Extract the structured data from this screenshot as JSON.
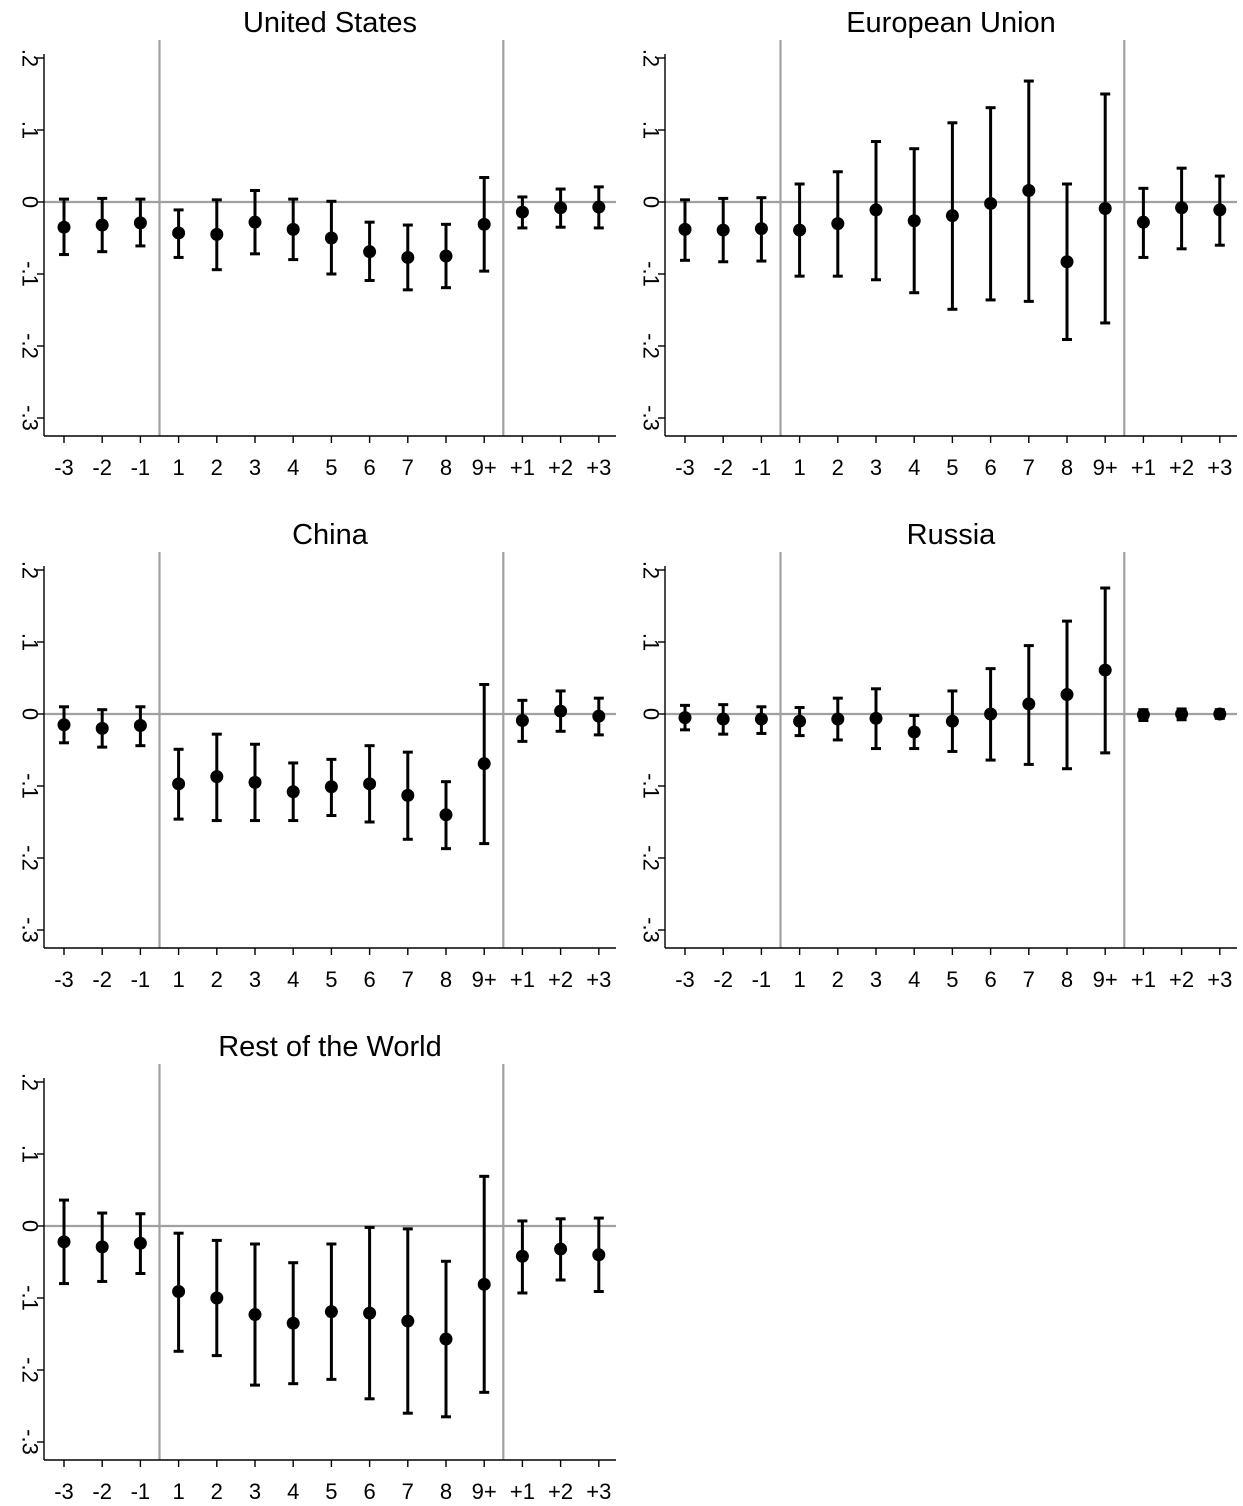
{
  "chart_data": [
    {
      "type": "scatter",
      "title": "United States",
      "categories": [
        "-3",
        "-2",
        "-1",
        "1",
        "2",
        "3",
        "4",
        "5",
        "6",
        "7",
        "8",
        "9+",
        "+1",
        "+2",
        "+3"
      ],
      "yticks": [
        0.2,
        0.1,
        0,
        -0.1,
        -0.2,
        -0.3
      ],
      "ytick_labels": [
        ".2",
        ".1",
        "0",
        "-.1",
        "-.2",
        "-.3"
      ],
      "ylim": [
        -0.325,
        0.225
      ],
      "separators_after": [
        "-1",
        "9+"
      ],
      "zero_line": true,
      "points": [
        {
          "x": "-3",
          "y": -0.035,
          "lo": -0.073,
          "hi": 0.004
        },
        {
          "x": "-2",
          "y": -0.032,
          "lo": -0.069,
          "hi": 0.005
        },
        {
          "x": "-1",
          "y": -0.029,
          "lo": -0.061,
          "hi": 0.004
        },
        {
          "x": "1",
          "y": -0.043,
          "lo": -0.077,
          "hi": -0.011
        },
        {
          "x": "2",
          "y": -0.045,
          "lo": -0.094,
          "hi": 0.003
        },
        {
          "x": "3",
          "y": -0.028,
          "lo": -0.072,
          "hi": 0.016
        },
        {
          "x": "4",
          "y": -0.038,
          "lo": -0.08,
          "hi": 0.004
        },
        {
          "x": "5",
          "y": -0.05,
          "lo": -0.1,
          "hi": 0.001
        },
        {
          "x": "6",
          "y": -0.069,
          "lo": -0.109,
          "hi": -0.028
        },
        {
          "x": "7",
          "y": -0.077,
          "lo": -0.122,
          "hi": -0.032
        },
        {
          "x": "8",
          "y": -0.075,
          "lo": -0.119,
          "hi": -0.031
        },
        {
          "x": "9+",
          "y": -0.031,
          "lo": -0.096,
          "hi": 0.034
        },
        {
          "x": "+1",
          "y": -0.014,
          "lo": -0.036,
          "hi": 0.007
        },
        {
          "x": "+2",
          "y": -0.008,
          "lo": -0.035,
          "hi": 0.018
        },
        {
          "x": "+3",
          "y": -0.007,
          "lo": -0.036,
          "hi": 0.021
        }
      ]
    },
    {
      "type": "scatter",
      "title": "European Union",
      "categories": [
        "-3",
        "-2",
        "-1",
        "1",
        "2",
        "3",
        "4",
        "5",
        "6",
        "7",
        "8",
        "9+",
        "+1",
        "+2",
        "+3"
      ],
      "yticks": [
        0.2,
        0.1,
        0,
        -0.1,
        -0.2,
        -0.3
      ],
      "ytick_labels": [
        ".2",
        ".1",
        "0",
        "-.1",
        "-.2",
        "-.3"
      ],
      "ylim": [
        -0.325,
        0.225
      ],
      "separators_after": [
        "-1",
        "9+"
      ],
      "zero_line": true,
      "points": [
        {
          "x": "-3",
          "y": -0.038,
          "lo": -0.081,
          "hi": 0.003
        },
        {
          "x": "-2",
          "y": -0.039,
          "lo": -0.083,
          "hi": 0.005
        },
        {
          "x": "-1",
          "y": -0.037,
          "lo": -0.082,
          "hi": 0.006
        },
        {
          "x": "1",
          "y": -0.039,
          "lo": -0.103,
          "hi": 0.025
        },
        {
          "x": "2",
          "y": -0.03,
          "lo": -0.103,
          "hi": 0.042
        },
        {
          "x": "3",
          "y": -0.011,
          "lo": -0.108,
          "hi": 0.084
        },
        {
          "x": "4",
          "y": -0.026,
          "lo": -0.126,
          "hi": 0.074
        },
        {
          "x": "5",
          "y": -0.019,
          "lo": -0.149,
          "hi": 0.11
        },
        {
          "x": "6",
          "y": -0.002,
          "lo": -0.136,
          "hi": 0.131
        },
        {
          "x": "7",
          "y": 0.016,
          "lo": -0.138,
          "hi": 0.168
        },
        {
          "x": "8",
          "y": -0.083,
          "lo": -0.191,
          "hi": 0.025
        },
        {
          "x": "9+",
          "y": -0.009,
          "lo": -0.168,
          "hi": 0.15
        },
        {
          "x": "+1",
          "y": -0.028,
          "lo": -0.077,
          "hi": 0.019
        },
        {
          "x": "+2",
          "y": -0.008,
          "lo": -0.065,
          "hi": 0.047
        },
        {
          "x": "+3",
          "y": -0.011,
          "lo": -0.06,
          "hi": 0.036
        }
      ]
    },
    {
      "type": "scatter",
      "title": "China",
      "categories": [
        "-3",
        "-2",
        "-1",
        "1",
        "2",
        "3",
        "4",
        "5",
        "6",
        "7",
        "8",
        "9+",
        "+1",
        "+2",
        "+3"
      ],
      "yticks": [
        0.2,
        0.1,
        0,
        -0.1,
        -0.2,
        -0.3
      ],
      "ytick_labels": [
        ".2",
        ".1",
        "0",
        "-.1",
        "-.2",
        "-.3"
      ],
      "ylim": [
        -0.325,
        0.225
      ],
      "separators_after": [
        "-1",
        "9+"
      ],
      "zero_line": true,
      "points": [
        {
          "x": "-3",
          "y": -0.015,
          "lo": -0.04,
          "hi": 0.01
        },
        {
          "x": "-2",
          "y": -0.02,
          "lo": -0.046,
          "hi": 0.006
        },
        {
          "x": "-1",
          "y": -0.016,
          "lo": -0.044,
          "hi": 0.01
        },
        {
          "x": "1",
          "y": -0.097,
          "lo": -0.146,
          "hi": -0.049
        },
        {
          "x": "2",
          "y": -0.087,
          "lo": -0.148,
          "hi": -0.028
        },
        {
          "x": "3",
          "y": -0.095,
          "lo": -0.148,
          "hi": -0.042
        },
        {
          "x": "4",
          "y": -0.108,
          "lo": -0.148,
          "hi": -0.068
        },
        {
          "x": "5",
          "y": -0.101,
          "lo": -0.141,
          "hi": -0.063
        },
        {
          "x": "6",
          "y": -0.097,
          "lo": -0.15,
          "hi": -0.044
        },
        {
          "x": "7",
          "y": -0.113,
          "lo": -0.174,
          "hi": -0.053
        },
        {
          "x": "8",
          "y": -0.14,
          "lo": -0.187,
          "hi": -0.094
        },
        {
          "x": "9+",
          "y": -0.069,
          "lo": -0.18,
          "hi": 0.041
        },
        {
          "x": "+1",
          "y": -0.009,
          "lo": -0.038,
          "hi": 0.019
        },
        {
          "x": "+2",
          "y": 0.004,
          "lo": -0.024,
          "hi": 0.032
        },
        {
          "x": "+3",
          "y": -0.003,
          "lo": -0.029,
          "hi": 0.022
        }
      ]
    },
    {
      "type": "scatter",
      "title": "Russia",
      "categories": [
        "-3",
        "-2",
        "-1",
        "1",
        "2",
        "3",
        "4",
        "5",
        "6",
        "7",
        "8",
        "9+",
        "+1",
        "+2",
        "+3"
      ],
      "yticks": [
        0.2,
        0.1,
        0,
        -0.1,
        -0.2,
        -0.3
      ],
      "ytick_labels": [
        ".2",
        ".1",
        "0",
        "-.1",
        "-.2",
        "-.3"
      ],
      "ylim": [
        -0.325,
        0.225
      ],
      "separators_after": [
        "-1",
        "9+"
      ],
      "zero_line": true,
      "points": [
        {
          "x": "-3",
          "y": -0.005,
          "lo": -0.022,
          "hi": 0.012
        },
        {
          "x": "-2",
          "y": -0.007,
          "lo": -0.028,
          "hi": 0.013
        },
        {
          "x": "-1",
          "y": -0.007,
          "lo": -0.027,
          "hi": 0.01
        },
        {
          "x": "1",
          "y": -0.01,
          "lo": -0.03,
          "hi": 0.009
        },
        {
          "x": "2",
          "y": -0.007,
          "lo": -0.036,
          "hi": 0.022
        },
        {
          "x": "3",
          "y": -0.006,
          "lo": -0.048,
          "hi": 0.035
        },
        {
          "x": "4",
          "y": -0.025,
          "lo": -0.048,
          "hi": -0.002
        },
        {
          "x": "5",
          "y": -0.01,
          "lo": -0.052,
          "hi": 0.032
        },
        {
          "x": "6",
          "y": 0.0,
          "lo": -0.064,
          "hi": 0.063
        },
        {
          "x": "7",
          "y": 0.014,
          "lo": -0.07,
          "hi": 0.095
        },
        {
          "x": "8",
          "y": 0.027,
          "lo": -0.076,
          "hi": 0.129
        },
        {
          "x": "9+",
          "y": 0.061,
          "lo": -0.054,
          "hi": 0.175
        },
        {
          "x": "+1",
          "y": -0.001,
          "lo": -0.009,
          "hi": 0.006
        },
        {
          "x": "+2",
          "y": 0.0,
          "lo": -0.008,
          "hi": 0.007
        },
        {
          "x": "+3",
          "y": 0.0,
          "lo": -0.006,
          "hi": 0.006
        }
      ]
    },
    {
      "type": "scatter",
      "title": "Rest of the World",
      "categories": [
        "-3",
        "-2",
        "-1",
        "1",
        "2",
        "3",
        "4",
        "5",
        "6",
        "7",
        "8",
        "9+",
        "+1",
        "+2",
        "+3"
      ],
      "yticks": [
        0.2,
        0.1,
        0,
        -0.1,
        -0.2,
        -0.3
      ],
      "ytick_labels": [
        ".2",
        ".1",
        "0",
        "-.1",
        "-.2",
        "-.3"
      ],
      "ylim": [
        -0.325,
        0.225
      ],
      "separators_after": [
        "-1",
        "9+"
      ],
      "zero_line": true,
      "points": [
        {
          "x": "-3",
          "y": -0.022,
          "lo": -0.08,
          "hi": 0.036
        },
        {
          "x": "-2",
          "y": -0.029,
          "lo": -0.077,
          "hi": 0.018
        },
        {
          "x": "-1",
          "y": -0.024,
          "lo": -0.066,
          "hi": 0.017
        },
        {
          "x": "1",
          "y": -0.091,
          "lo": -0.174,
          "hi": -0.01
        },
        {
          "x": "2",
          "y": -0.1,
          "lo": -0.18,
          "hi": -0.02
        },
        {
          "x": "3",
          "y": -0.123,
          "lo": -0.221,
          "hi": -0.025
        },
        {
          "x": "4",
          "y": -0.135,
          "lo": -0.219,
          "hi": -0.051
        },
        {
          "x": "5",
          "y": -0.119,
          "lo": -0.213,
          "hi": -0.025
        },
        {
          "x": "6",
          "y": -0.121,
          "lo": -0.24,
          "hi": -0.002
        },
        {
          "x": "7",
          "y": -0.132,
          "lo": -0.26,
          "hi": -0.004
        },
        {
          "x": "8",
          "y": -0.157,
          "lo": -0.265,
          "hi": -0.049
        },
        {
          "x": "9+",
          "y": -0.081,
          "lo": -0.231,
          "hi": 0.069
        },
        {
          "x": "+1",
          "y": -0.042,
          "lo": -0.093,
          "hi": 0.007
        },
        {
          "x": "+2",
          "y": -0.032,
          "lo": -0.075,
          "hi": 0.01
        },
        {
          "x": "+3",
          "y": -0.04,
          "lo": -0.091,
          "hi": 0.011
        }
      ]
    }
  ]
}
